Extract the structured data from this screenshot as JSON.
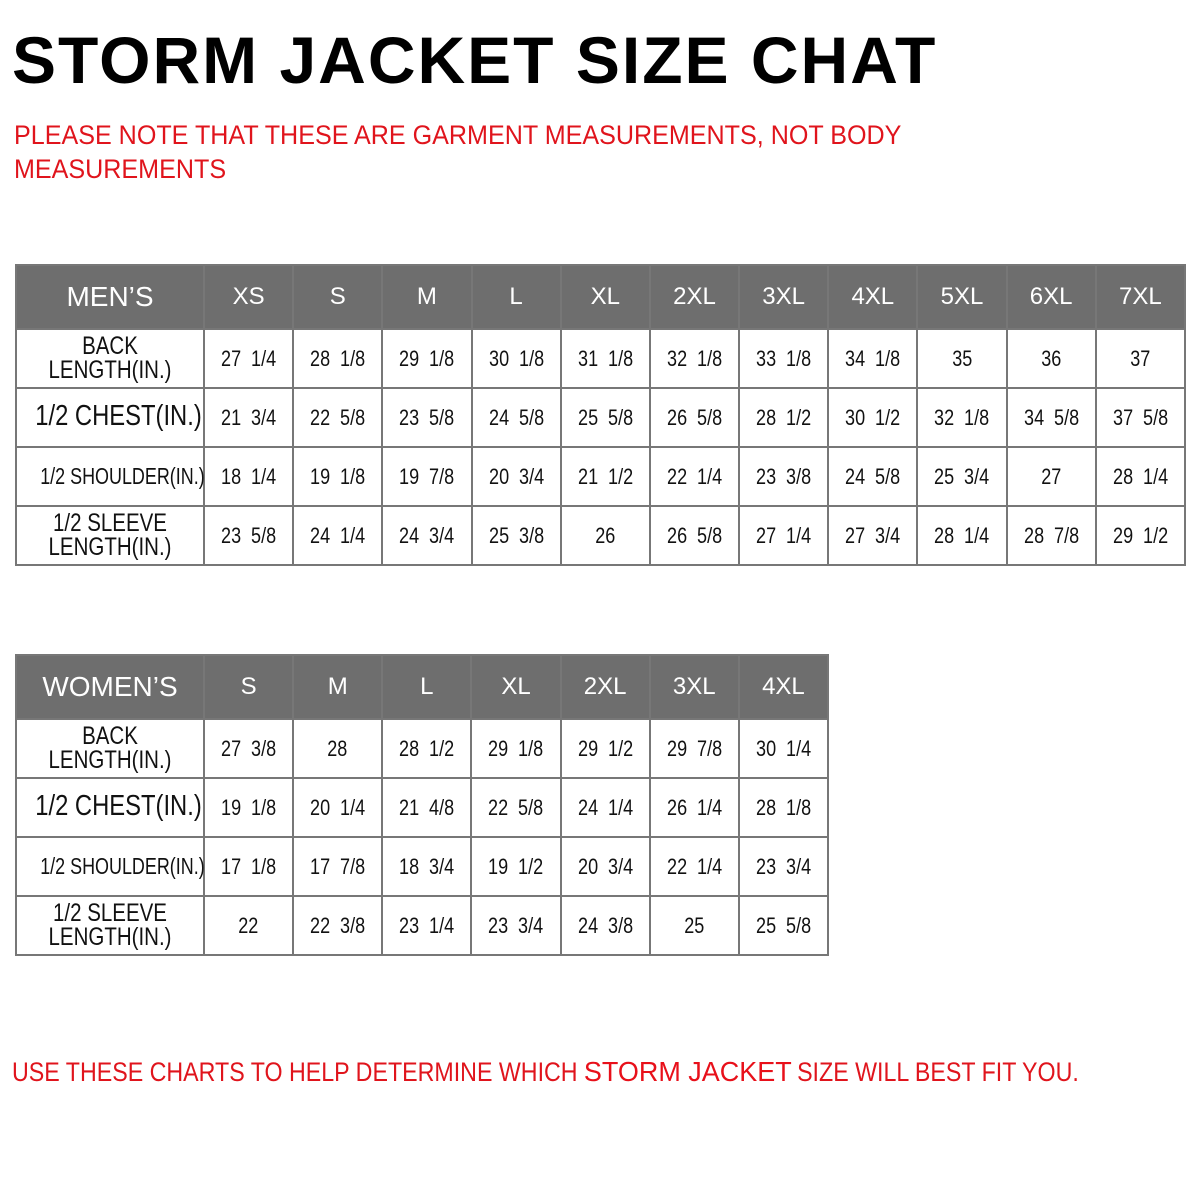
{
  "title": "STORM JACKET SIZE CHAT",
  "note": "PLEASE NOTE THAT THESE ARE GARMENT MEASUREMENTS, NOT BODY MEASUREMENTS",
  "mens": {
    "corner": "MEN’S",
    "sizes": [
      "XS",
      "S",
      "M",
      "L",
      "XL",
      "2XL",
      "3XL",
      "4XL",
      "5XL",
      "6XL",
      "7XL"
    ],
    "rows": [
      {
        "label": "BACK LENGTH(IN.)",
        "values": [
          "27 1/4",
          "28 1/8",
          "29 1/8",
          "30 1/8",
          "31 1/8",
          "32 1/8",
          "33 1/8",
          "34 1/8",
          "35",
          "36",
          "37"
        ]
      },
      {
        "label": "1/2 CHEST(IN.)",
        "values": [
          "21 3/4",
          "22 5/8",
          "23 5/8",
          "24 5/8",
          "25 5/8",
          "26 5/8",
          "28 1/2",
          "30 1/2",
          "32 1/8",
          "34 5/8",
          "37 5/8"
        ]
      },
      {
        "label": "1/2 SHOULDER(IN.)",
        "values": [
          "18 1/4",
          "19 1/8",
          "19 7/8",
          "20 3/4",
          "21 1/2",
          "22 1/4",
          "23 3/8",
          "24 5/8",
          "25 3/4",
          "27",
          "28 1/4"
        ]
      },
      {
        "label": "1/2 SLEEVE LENGTH(IN.)",
        "values": [
          "23 5/8",
          "24 1/4",
          "24 3/4",
          "25 3/8",
          "26",
          "26 5/8",
          "27 1/4",
          "27 3/4",
          "28 1/4",
          "28 7/8",
          "29 1/2"
        ]
      }
    ]
  },
  "womens": {
    "corner": "WOMEN’S",
    "sizes": [
      "S",
      "M",
      "L",
      "XL",
      "2XL",
      "3XL",
      "4XL"
    ],
    "rows": [
      {
        "label": "BACK LENGTH(IN.)",
        "values": [
          "27 3/8",
          "28",
          "28 1/2",
          "29 1/8",
          "29 1/2",
          "29 7/8",
          "30 1/4"
        ]
      },
      {
        "label": "1/2 CHEST(IN.)",
        "values": [
          "19 1/8",
          "20 1/4",
          "21 4/8",
          "22 5/8",
          "24 1/4",
          "26 1/4",
          "28 1/8"
        ]
      },
      {
        "label": "1/2 SHOULDER(IN.)",
        "values": [
          "17 1/8",
          "17 7/8",
          "18 3/4",
          "19 1/2",
          "20 3/4",
          "22 1/4",
          "23 3/4"
        ]
      },
      {
        "label": "1/2 SLEEVE LENGTH(IN.)",
        "values": [
          "22",
          "22 3/8",
          "23 1/4",
          "23 3/4",
          "24 3/8",
          "25",
          "25 5/8"
        ]
      }
    ]
  },
  "footer": {
    "before": "USE THESE CHARTS TO HELP DETERMINE WHICH ",
    "highlight": "STORM JACKET",
    "after": "SIZE WILL BEST FIT YOU."
  },
  "colors": {
    "header_bg": "#6e6e6e",
    "note_red": "#e0141c",
    "border": "#777777"
  }
}
